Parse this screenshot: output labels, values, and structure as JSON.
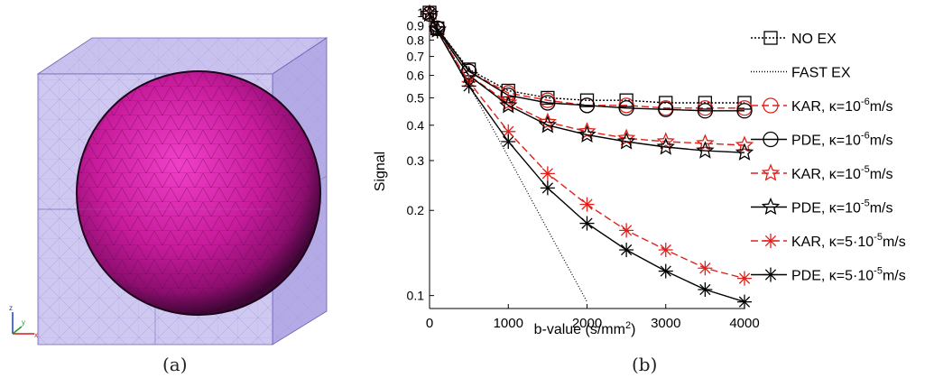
{
  "figure": {
    "caption_a": "(a)",
    "caption_b": "(b)",
    "axes_triad_labels": {
      "z": "z",
      "y": "y",
      "x": "x"
    }
  },
  "chart_data": {
    "type": "line",
    "xlabel": "b-value (s/mm",
    "xlabel_sup": "2",
    "xlabel_close": ")",
    "ylabel": "Signal",
    "yscale": "log",
    "xlim": [
      0,
      4000
    ],
    "ylim": [
      0.09,
      1.0
    ],
    "xticks": [
      0,
      1000,
      2000,
      3000,
      4000
    ],
    "xtick_labels": [
      "0",
      "1000",
      "2000",
      "3000",
      "4000"
    ],
    "yticks": [
      1.0,
      0.9,
      0.8,
      0.7,
      0.6,
      0.5,
      0.4,
      0.3,
      0.2,
      0.1
    ],
    "ytick_labels": [
      "1",
      "0.9",
      "0.8",
      "0.7",
      "0.6",
      "0.5",
      "0.4",
      "0.3",
      "0.2",
      "0.1"
    ],
    "grid": false,
    "legend_position": "right",
    "series": [
      {
        "name": "NO EX",
        "color": "#000000",
        "dash": "2,2",
        "marker": "square",
        "x": [
          0,
          100,
          500,
          1000,
          1500,
          2000,
          2500,
          3000,
          3500,
          4000
        ],
        "y": [
          1.0,
          0.88,
          0.63,
          0.53,
          0.5,
          0.49,
          0.49,
          0.48,
          0.48,
          0.48
        ]
      },
      {
        "name": "FAST EX",
        "color": "#000000",
        "dash": "1,2",
        "marker": "none",
        "x": [
          0,
          500,
          1000,
          1500,
          2000
        ],
        "y": [
          1.0,
          0.555,
          0.309,
          0.171,
          0.095
        ]
      },
      {
        "name": "KAR, κ=10",
        "sup": "-6",
        "unit": "m/s",
        "color": "#e0201b",
        "dash": "8,4",
        "marker": "circle",
        "x": [
          0,
          100,
          500,
          1000,
          1500,
          2000,
          2500,
          3000,
          3500,
          4000
        ],
        "y": [
          0.99,
          0.88,
          0.62,
          0.52,
          0.49,
          0.47,
          0.47,
          0.46,
          0.46,
          0.46
        ]
      },
      {
        "name": "PDE, κ=10",
        "sup": "-6",
        "unit": "m/s",
        "color": "#000000",
        "dash": "",
        "marker": "circle",
        "x": [
          0,
          100,
          500,
          1000,
          1500,
          2000,
          2500,
          3000,
          3500,
          4000
        ],
        "y": [
          0.99,
          0.88,
          0.62,
          0.51,
          0.48,
          0.47,
          0.46,
          0.455,
          0.45,
          0.45
        ]
      },
      {
        "name": "KAR, κ=10",
        "sup": "-5",
        "unit": "m/s",
        "color": "#e0201b",
        "dash": "8,4",
        "marker": "star",
        "x": [
          0,
          100,
          500,
          1000,
          1500,
          2000,
          2500,
          3000,
          3500,
          4000
        ],
        "y": [
          0.99,
          0.87,
          0.6,
          0.48,
          0.41,
          0.38,
          0.36,
          0.35,
          0.345,
          0.34
        ]
      },
      {
        "name": "PDE, κ=10",
        "sup": "-5",
        "unit": "m/s",
        "color": "#000000",
        "dash": "",
        "marker": "star",
        "x": [
          0,
          100,
          500,
          1000,
          1500,
          2000,
          2500,
          3000,
          3500,
          4000
        ],
        "y": [
          0.99,
          0.87,
          0.6,
          0.47,
          0.4,
          0.37,
          0.35,
          0.335,
          0.325,
          0.32
        ]
      },
      {
        "name": "KAR, κ=5·10",
        "sup": "-5",
        "unit": "m/s",
        "color": "#e0201b",
        "dash": "8,4",
        "marker": "asterisk",
        "x": [
          0,
          100,
          500,
          1000,
          1500,
          2000,
          2500,
          3000,
          3500,
          4000
        ],
        "y": [
          0.99,
          0.86,
          0.57,
          0.38,
          0.27,
          0.21,
          0.17,
          0.145,
          0.125,
          0.115
        ]
      },
      {
        "name": "PDE, κ=5·10",
        "sup": "-5",
        "unit": "m/s",
        "color": "#000000",
        "dash": "",
        "marker": "asterisk",
        "x": [
          0,
          100,
          500,
          1000,
          1500,
          2000,
          2500,
          3000,
          3500,
          4000
        ],
        "y": [
          0.99,
          0.86,
          0.55,
          0.35,
          0.24,
          0.18,
          0.145,
          0.122,
          0.105,
          0.095
        ]
      }
    ]
  }
}
